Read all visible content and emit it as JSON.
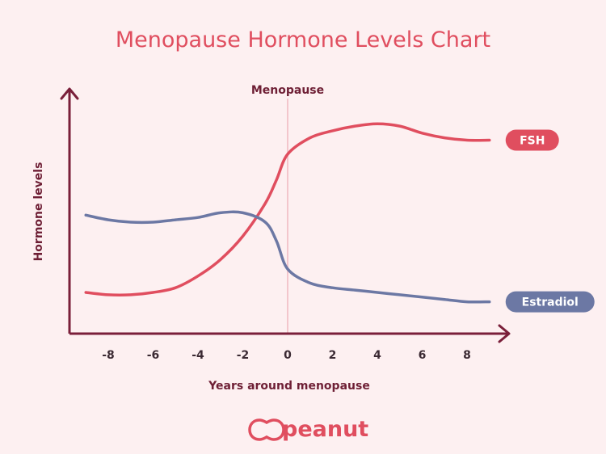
{
  "chart_data": {
    "type": "line",
    "title": "Menopause Hormone Levels Chart",
    "xlabel": "Years around menopause",
    "ylabel": "Hormone levels",
    "xlim": [
      -9.5,
      9.5
    ],
    "ylim": [
      0,
      100
    ],
    "x_ticks": [
      -8,
      -6,
      -4,
      -2,
      0,
      2,
      4,
      6,
      8
    ],
    "annotation": {
      "label": "Menopause",
      "x": 0
    },
    "series": [
      {
        "name": "FSH",
        "color": "#e04e5f",
        "x": [
          -9,
          -8,
          -7,
          -6,
          -5,
          -4,
          -3,
          -2,
          -1,
          -0.5,
          0,
          1,
          2,
          3,
          4,
          5,
          6,
          7,
          8,
          9
        ],
        "y": [
          20,
          19,
          19,
          20,
          22,
          27,
          34,
          44,
          58,
          68,
          79,
          86,
          89,
          91,
          92,
          91,
          88,
          86,
          85,
          85
        ]
      },
      {
        "name": "Estradiol",
        "color": "#6c78a4",
        "x": [
          -9,
          -8,
          -7,
          -6,
          -5,
          -4,
          -3,
          -2,
          -1,
          -0.5,
          0,
          1,
          2,
          3,
          4,
          5,
          6,
          7,
          8,
          9
        ],
        "y": [
          53,
          51,
          50,
          50,
          51,
          52,
          54,
          54,
          50,
          42,
          30,
          24,
          22,
          21,
          20,
          19,
          18,
          17,
          16,
          16
        ]
      }
    ],
    "legend_placement": "end-of-line",
    "grid": false
  },
  "brand": {
    "name": "peanut",
    "accent": "#e04e5f"
  }
}
